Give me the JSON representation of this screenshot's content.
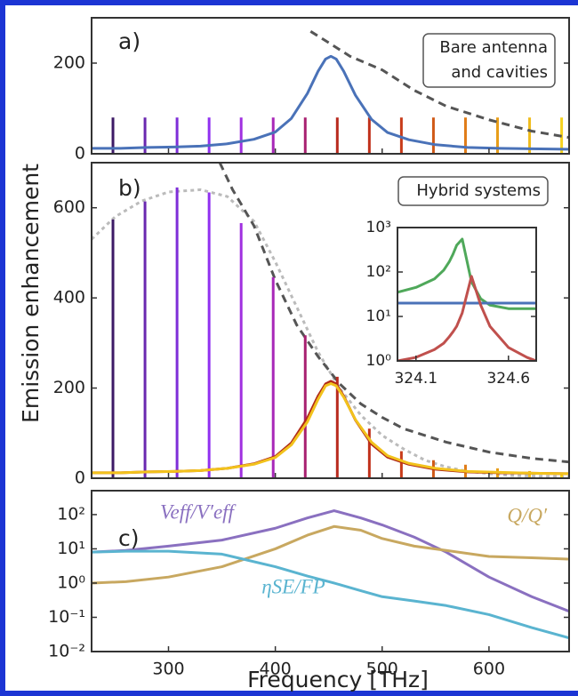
{
  "chart_data": [
    {
      "type": "line",
      "panel_label": "a)",
      "annotation": [
        "Bare antenna",
        "and cavities"
      ],
      "xlim": [
        228,
        675
      ],
      "ylim": [
        0,
        300
      ],
      "yticks": [
        0,
        200
      ],
      "series": [
        {
          "style": "stem",
          "colors": [
            "#3d1a66",
            "#6a28b0",
            "#7e2ed8",
            "#9030f0",
            "#a030e0",
            "#a828b8",
            "#a82070",
            "#b82a1e",
            "#c0301a",
            "#c83c1a",
            "#d05a18",
            "#e07c18",
            "#e89e1a",
            "#f0bc1c",
            "#f5d21e"
          ],
          "x": [
            248,
            278,
            308,
            338,
            368,
            398,
            428,
            458,
            488,
            518,
            548,
            578,
            608,
            638,
            668
          ],
          "values": [
            80,
            80,
            80,
            80,
            80,
            80,
            80,
            80,
            80,
            80,
            80,
            80,
            80,
            80,
            80
          ]
        },
        {
          "style": "solid",
          "color": "#4a72b8",
          "x": [
            228,
            255,
            280,
            305,
            330,
            355,
            380,
            400,
            415,
            430,
            440,
            447,
            452,
            457,
            464,
            475,
            490,
            505,
            525,
            550,
            580,
            610,
            640,
            675
          ],
          "values": [
            12,
            12,
            14,
            15,
            17,
            22,
            32,
            48,
            78,
            133,
            182,
            209,
            215,
            209,
            182,
            129,
            76,
            47,
            31,
            20,
            14,
            12,
            11,
            10
          ]
        },
        {
          "style": "dashed",
          "color": "#555555",
          "x": [
            433,
            450,
            470,
            500,
            530,
            560,
            600,
            640,
            675
          ],
          "values": [
            270,
            245,
            215,
            185,
            140,
            105,
            75,
            50,
            36
          ]
        }
      ]
    },
    {
      "type": "line",
      "panel_label": "b)",
      "annotation": [
        "Hybrid systems"
      ],
      "ylabel": "Emission enhancement",
      "xlim": [
        228,
        675
      ],
      "ylim": [
        0,
        700
      ],
      "yticks": [
        0,
        200,
        400,
        600
      ],
      "series": [
        {
          "style": "dotted",
          "color": "#bbbbbb",
          "x": [
            228,
            250,
            275,
            300,
            330,
            355,
            380,
            400,
            420,
            440,
            460,
            480,
            500,
            520,
            540,
            560,
            580,
            620,
            675
          ],
          "values": [
            530,
            580,
            615,
            635,
            640,
            625,
            570,
            480,
            380,
            280,
            200,
            140,
            95,
            65,
            40,
            25,
            15,
            6,
            3
          ]
        },
        {
          "style": "dashed",
          "color": "#555555",
          "x": [
            348,
            360,
            380,
            400,
            420,
            440,
            460,
            480,
            500,
            520,
            560,
            600,
            640,
            675
          ],
          "values": [
            700,
            640,
            560,
            440,
            340,
            270,
            210,
            165,
            135,
            110,
            80,
            58,
            44,
            36
          ]
        },
        {
          "style": "stem",
          "colors": [
            "#3d1a66",
            "#6a28b0",
            "#7e2ed8",
            "#9030f0",
            "#a030e0",
            "#a828b8",
            "#a82070",
            "#b82a1e",
            "#c0301a",
            "#c83c1a",
            "#d05a18",
            "#e07c18",
            "#e89e1a",
            "#f0bc1c",
            "#f5d21e"
          ],
          "x": [
            248,
            278,
            308,
            338,
            368,
            398,
            428,
            458,
            488,
            518,
            548,
            578,
            608,
            638,
            668
          ],
          "values": [
            574,
            614,
            645,
            634,
            566,
            446,
            317,
            225,
            110,
            60,
            40,
            30,
            22,
            16,
            12
          ]
        },
        {
          "style": "solid",
          "color": "#b02a18",
          "x": [
            228,
            255,
            280,
            305,
            330,
            355,
            380,
            400,
            415,
            430,
            440,
            447,
            452,
            457,
            464,
            475,
            490,
            505,
            525,
            550,
            580,
            610,
            640,
            675
          ],
          "values": [
            12,
            12,
            14,
            15,
            17,
            22,
            32,
            48,
            78,
            133,
            182,
            209,
            215,
            209,
            182,
            129,
            76,
            47,
            31,
            20,
            14,
            12,
            11,
            10
          ]
        },
        {
          "style": "solid",
          "color": "#f2c21c",
          "x": [
            228,
            255,
            280,
            305,
            330,
            355,
            380,
            400,
            415,
            430,
            440,
            447,
            452,
            457,
            464,
            475,
            490,
            505,
            525,
            550,
            580,
            610,
            640,
            675
          ],
          "values": [
            12,
            12,
            14,
            15,
            17,
            22,
            31,
            46,
            74,
            125,
            175,
            205,
            210,
            205,
            180,
            130,
            80,
            50,
            33,
            22,
            15,
            13,
            11,
            10
          ]
        }
      ]
    },
    {
      "type": "line",
      "panel_label": "c)",
      "xlabel": "Frequency [THz]",
      "log_y": true,
      "xlim": [
        228,
        675
      ],
      "ylim": [
        0.01,
        500
      ],
      "xticks": [
        300,
        400,
        500,
        600
      ],
      "yticks": [
        {
          "value": 0.01,
          "label": "10⁻²"
        },
        {
          "value": 0.1,
          "label": "10⁻¹"
        },
        {
          "value": 1,
          "label": "10⁰"
        },
        {
          "value": 10,
          "label": "10¹"
        },
        {
          "value": 100,
          "label": "10²"
        }
      ],
      "series": [
        {
          "name": "Veff/V′eff",
          "style": "solid",
          "color": "#8a70c0",
          "x": [
            228,
            260,
            300,
            350,
            400,
            430,
            455,
            480,
            500,
            530,
            560,
            600,
            640,
            675
          ],
          "values": [
            8,
            9,
            12,
            18,
            40,
            80,
            130,
            80,
            50,
            22,
            8,
            1.5,
            0.4,
            0.15
          ]
        },
        {
          "name": "Q/Q′",
          "style": "solid",
          "color": "#c8a860",
          "x": [
            228,
            260,
            300,
            350,
            400,
            430,
            455,
            480,
            500,
            530,
            560,
            600,
            640,
            675
          ],
          "values": [
            1,
            1.1,
            1.5,
            3,
            10,
            25,
            45,
            35,
            20,
            12,
            9,
            6,
            5.5,
            5
          ]
        },
        {
          "name": "ηSE/FP",
          "style": "solid",
          "color": "#5ab4d0",
          "x": [
            228,
            260,
            300,
            350,
            400,
            430,
            455,
            480,
            500,
            530,
            560,
            600,
            640,
            675
          ],
          "values": [
            8,
            8.5,
            8.5,
            7,
            3,
            1.6,
            1,
            0.6,
            0.4,
            0.3,
            0.22,
            0.12,
            0.05,
            0.025
          ]
        }
      ]
    },
    {
      "type": "line",
      "log_y": true,
      "xlim": [
        324.0,
        324.75
      ],
      "ylim": [
        1,
        1000
      ],
      "xticks": [
        324.1,
        324.6
      ],
      "yticks": [
        {
          "value": 1,
          "label": "10⁰"
        },
        {
          "value": 10,
          "label": "10¹"
        },
        {
          "value": 100,
          "label": "10²"
        },
        {
          "value": 1000,
          "label": "10³"
        }
      ],
      "series": [
        {
          "style": "solid",
          "color": "#4fa85a",
          "x": [
            324.0,
            324.1,
            324.2,
            324.25,
            324.28,
            324.3,
            324.32,
            324.35,
            324.4,
            324.45,
            324.5,
            324.6,
            324.7,
            324.75
          ],
          "values": [
            35,
            45,
            70,
            110,
            170,
            250,
            400,
            550,
            60,
            25,
            18,
            15,
            15,
            15
          ]
        },
        {
          "style": "solid",
          "color": "#4a72b8",
          "x": [
            324.0,
            324.1,
            324.2,
            324.25,
            324.28,
            324.3,
            324.32,
            324.35,
            324.4,
            324.45,
            324.5,
            324.6,
            324.7,
            324.75
          ],
          "values": [
            20,
            20,
            20,
            20,
            20,
            20,
            20,
            20,
            20,
            20,
            20,
            20,
            20,
            20
          ]
        },
        {
          "style": "solid",
          "color": "#c0504d",
          "x": [
            324.0,
            324.1,
            324.2,
            324.25,
            324.28,
            324.3,
            324.32,
            324.35,
            324.4,
            324.45,
            324.5,
            324.6,
            324.7,
            324.75
          ],
          "values": [
            1,
            1.2,
            1.8,
            2.5,
            3.5,
            4.5,
            6,
            12,
            80,
            18,
            6,
            2,
            1.2,
            1
          ]
        }
      ]
    }
  ]
}
